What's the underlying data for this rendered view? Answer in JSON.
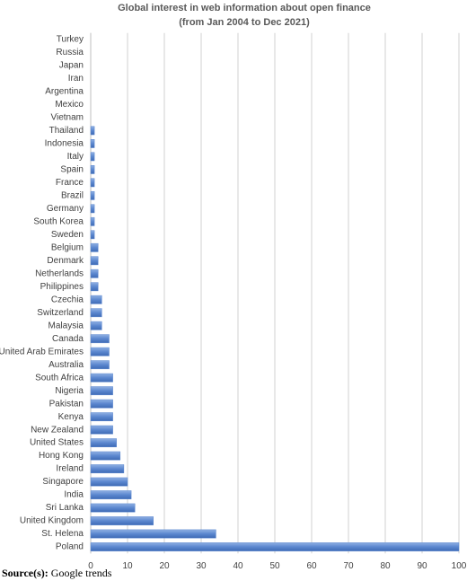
{
  "chart_data": {
    "type": "bar",
    "orientation": "horizontal",
    "title": [
      "Global interest in web information about open finance",
      "(from Jan 2004 to Dec 2021)"
    ],
    "categories": [
      "Turkey",
      "Russia",
      "Japan",
      "Iran",
      "Argentina",
      "Mexico",
      "Vietnam",
      "Thailand",
      "Indonesia",
      "Italy",
      "Spain",
      "France",
      "Brazil",
      "Germany",
      "South Korea",
      "Sweden",
      "Belgium",
      "Denmark",
      "Netherlands",
      "Philippines",
      "Czechia",
      "Switzerland",
      "Malaysia",
      "Canada",
      "United Arab Emirates",
      "Australia",
      "South Africa",
      "Nigeria",
      "Pakistan",
      "Kenya",
      "New Zealand",
      "United States",
      "Hong Kong",
      "Ireland",
      "Singapore",
      "India",
      "Sri Lanka",
      "United Kingdom",
      "St. Helena",
      "Poland"
    ],
    "values": [
      0,
      0,
      0,
      0,
      0,
      0,
      0,
      1,
      1,
      1,
      1,
      1,
      1,
      1,
      1,
      1,
      2,
      2,
      2,
      2,
      3,
      3,
      3,
      5,
      5,
      5,
      6,
      6,
      6,
      6,
      6,
      7,
      8,
      9,
      10,
      11,
      12,
      17,
      34,
      100
    ],
    "color": "#5b87cf",
    "xlim": [
      0,
      100
    ],
    "xticks": [
      0,
      10,
      20,
      30,
      40,
      50,
      60,
      70,
      80,
      90,
      100
    ],
    "grid": true,
    "source_label": "Source(s):",
    "source_text": "Google trends"
  }
}
